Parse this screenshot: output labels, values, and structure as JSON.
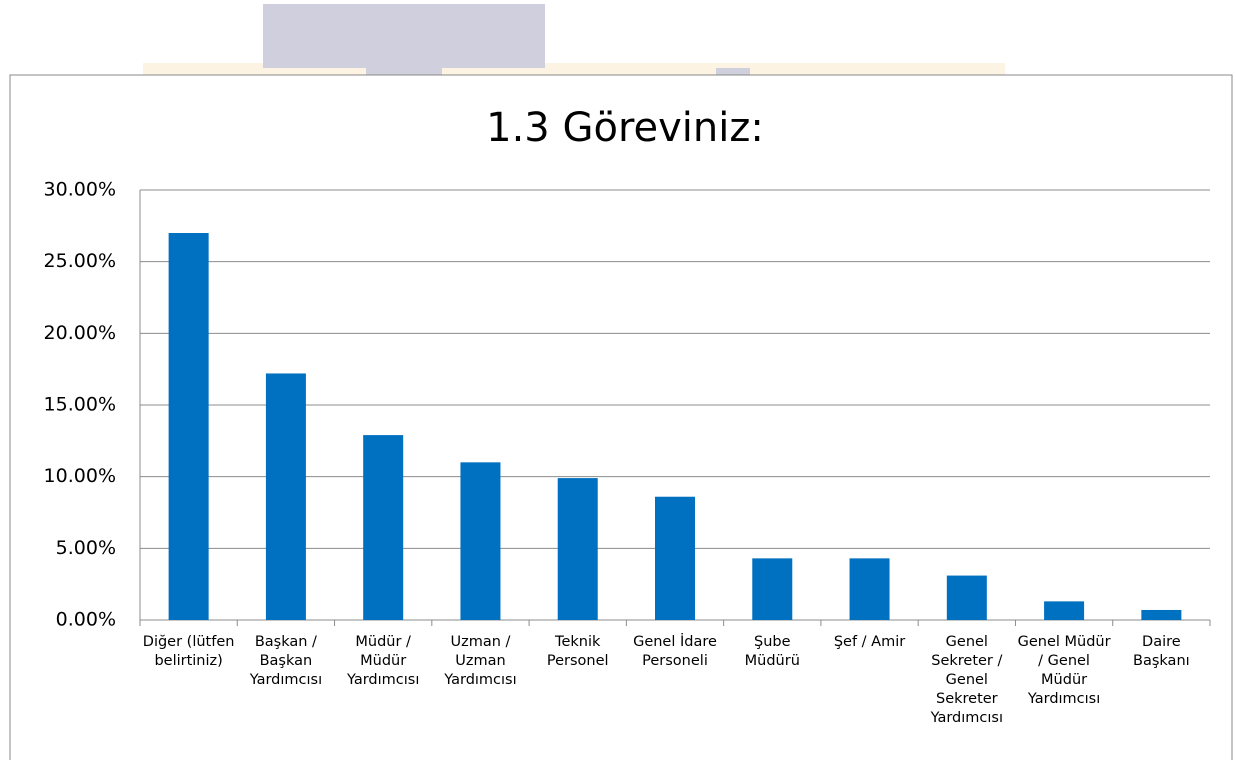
{
  "chart_data": {
    "type": "bar",
    "title": "1.3 Göreviniz:",
    "categories": [
      "Diğer (lütfen belirtiniz)",
      "Başkan / Başkan Yardımcısı",
      "Müdür / Müdür Yardımcısı",
      "Uzman / Uzman Yardımcısı",
      "Teknik Personel",
      "Genel İdare Personeli",
      "Şube Müdürü",
      "Şef / Amir",
      "Genel Sekreter / Genel Sekreter Yardımcısı",
      "Genel Müdür / Genel Müdür Yardımcısı",
      "Daire Başkanı"
    ],
    "values": [
      27.0,
      17.2,
      12.9,
      11.0,
      9.9,
      8.6,
      4.3,
      4.3,
      3.1,
      1.3,
      0.7
    ],
    "color": "#0070c0",
    "ylim": [
      0,
      30
    ],
    "yticks": [
      {
        "value": 0,
        "label": "0.00%"
      },
      {
        "value": 5,
        "label": "5.00%"
      },
      {
        "value": 10,
        "label": "10.00%"
      },
      {
        "value": 15,
        "label": "15.00%"
      },
      {
        "value": 20,
        "label": "20.00%"
      },
      {
        "value": 25,
        "label": "25.00%"
      },
      {
        "value": 30,
        "label": "30.00%"
      }
    ],
    "grid": true
  }
}
